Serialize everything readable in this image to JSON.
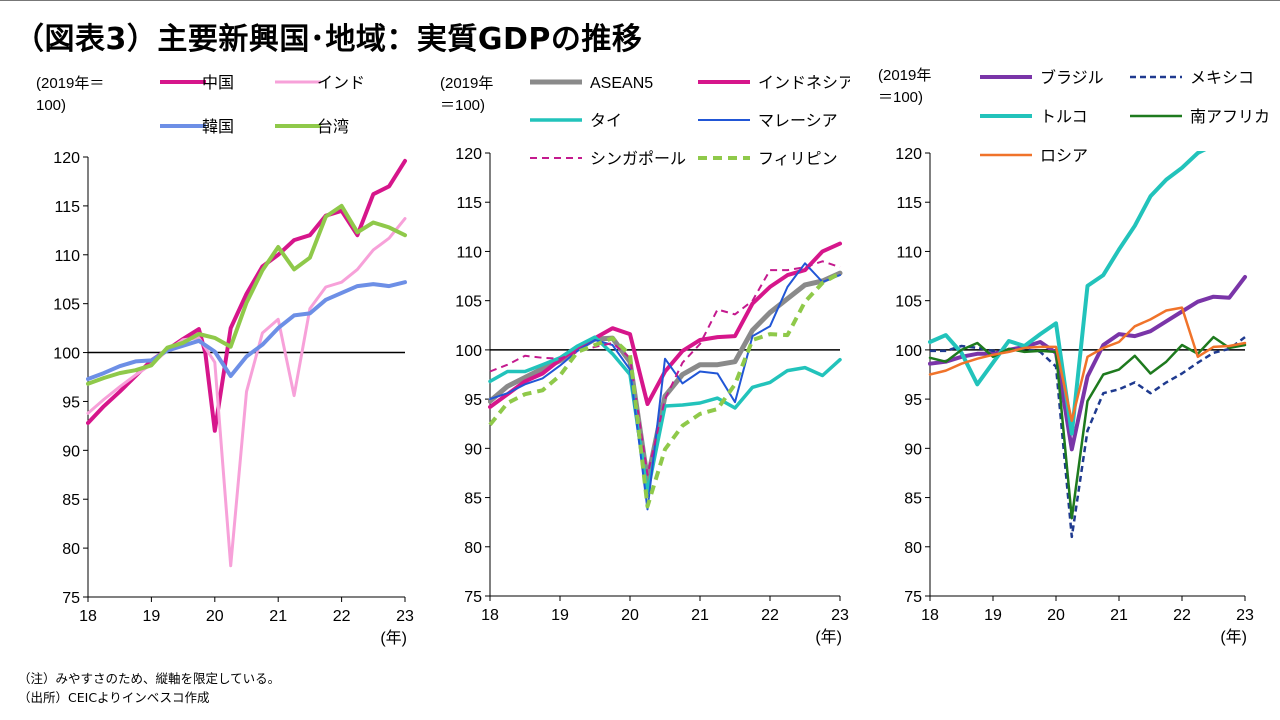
{
  "title": "（図表3）主要新興国･地域：実質GDPの推移",
  "notes": [
    "（注）みやすさのため、縦軸を限定している。",
    "（出所）CEICよりインベスコ作成"
  ],
  "chart_data": [
    {
      "type": "line",
      "unit_label": [
        "(2019年＝",
        "100)"
      ],
      "x_unit": "(年)",
      "xticks": [
        "18",
        "19",
        "20",
        "21",
        "22",
        "23"
      ],
      "x_range": [
        2018,
        2023
      ],
      "ylim": [
        75,
        120
      ],
      "yticks": [
        75,
        80,
        85,
        90,
        95,
        100,
        105,
        110,
        115,
        120
      ],
      "reference_line": 100,
      "series": [
        {
          "name": "中国",
          "color": "#d6168b",
          "width": 4,
          "dash": "",
          "x": [
            2018.0,
            2018.25,
            2018.5,
            2018.75,
            2019.0,
            2019.25,
            2019.5,
            2019.75,
            2019.85,
            2020.0,
            2020.25,
            2020.5,
            2020.75,
            2021.0,
            2021.25,
            2021.5,
            2021.75,
            2022.0,
            2022.25,
            2022.5,
            2022.75,
            2023.0
          ],
          "values": [
            92.8,
            94.5,
            96.0,
            97.6,
            99.2,
            100.3,
            101.4,
            102.4,
            100.0,
            92.0,
            102.5,
            106.0,
            108.8,
            110.0,
            111.5,
            112.0,
            114.0,
            114.5,
            112.0,
            116.2,
            117.0,
            119.6
          ]
        },
        {
          "name": "インド",
          "color": "#f7a1d9",
          "width": 3,
          "dash": "",
          "x": [
            2018.0,
            2018.25,
            2018.5,
            2018.75,
            2019.0,
            2019.25,
            2019.5,
            2019.75,
            2020.0,
            2020.25,
            2020.5,
            2020.75,
            2021.0,
            2021.25,
            2021.5,
            2021.75,
            2022.0,
            2022.25,
            2022.5,
            2022.75,
            2023.0
          ],
          "values": [
            93.8,
            95.2,
            96.5,
            97.7,
            98.8,
            100.2,
            101.3,
            101.5,
            99.0,
            78.2,
            96.0,
            102.0,
            103.4,
            95.6,
            104.5,
            106.7,
            107.2,
            108.5,
            110.5,
            111.7,
            113.7
          ]
        },
        {
          "name": "韓国",
          "color": "#6d8fe6",
          "width": 4,
          "dash": "",
          "x": [
            2018.0,
            2018.25,
            2018.5,
            2018.75,
            2019.0,
            2019.25,
            2019.5,
            2019.75,
            2020.0,
            2020.25,
            2020.5,
            2020.75,
            2021.0,
            2021.25,
            2021.5,
            2021.75,
            2022.0,
            2022.25,
            2022.5,
            2022.75,
            2023.0
          ],
          "values": [
            97.3,
            97.9,
            98.6,
            99.1,
            99.2,
            100.2,
            100.7,
            101.2,
            100.1,
            97.6,
            99.6,
            100.8,
            102.5,
            103.8,
            104.0,
            105.4,
            106.1,
            106.8,
            107.0,
            106.8,
            107.2
          ]
        },
        {
          "name": "台湾",
          "color": "#8fc94a",
          "width": 4,
          "dash": "",
          "x": [
            2018.0,
            2018.25,
            2018.5,
            2018.75,
            2019.0,
            2019.25,
            2019.5,
            2019.75,
            2020.0,
            2020.25,
            2020.5,
            2020.75,
            2021.0,
            2021.25,
            2021.5,
            2021.75,
            2022.0,
            2022.25,
            2022.5,
            2022.75,
            2023.0
          ],
          "values": [
            96.8,
            97.4,
            97.9,
            98.2,
            98.7,
            100.5,
            101.0,
            101.9,
            101.5,
            100.6,
            105.1,
            108.4,
            110.8,
            108.5,
            109.7,
            113.9,
            115.0,
            112.3,
            113.3,
            112.8,
            112.0
          ]
        }
      ]
    },
    {
      "type": "line",
      "unit_label": [
        "(2019年",
        "＝100)"
      ],
      "x_unit": "(年)",
      "xticks": [
        "18",
        "19",
        "20",
        "21",
        "22",
        "23"
      ],
      "x_range": [
        2018,
        2023
      ],
      "ylim": [
        75,
        120
      ],
      "yticks": [
        75,
        80,
        85,
        90,
        95,
        100,
        105,
        110,
        115,
        120
      ],
      "reference_line": 100,
      "series": [
        {
          "name": "ASEAN5",
          "color": "#8a8a8a",
          "width": 5,
          "dash": "",
          "x": [
            2018.0,
            2018.25,
            2018.5,
            2018.75,
            2019.0,
            2019.25,
            2019.5,
            2019.75,
            2020.0,
            2020.25,
            2020.5,
            2020.75,
            2021.0,
            2021.25,
            2021.5,
            2021.75,
            2022.0,
            2022.25,
            2022.5,
            2022.75,
            2023.0
          ],
          "values": [
            94.8,
            96.3,
            97.2,
            98.1,
            98.9,
            100.1,
            101.1,
            101.2,
            98.8,
            86.8,
            95.3,
            97.5,
            98.5,
            98.5,
            98.8,
            102.0,
            103.8,
            105.2,
            106.6,
            107.0,
            107.8
          ]
        },
        {
          "name": "インドネシア",
          "color": "#d6168b",
          "width": 4,
          "dash": "",
          "x": [
            2018.0,
            2018.25,
            2018.5,
            2018.75,
            2019.0,
            2019.25,
            2019.5,
            2019.75,
            2020.0,
            2020.25,
            2020.5,
            2020.75,
            2021.0,
            2021.25,
            2021.5,
            2021.75,
            2022.0,
            2022.25,
            2022.5,
            2022.75,
            2023.0
          ],
          "values": [
            94.2,
            95.5,
            96.8,
            97.6,
            99.0,
            100.2,
            101.2,
            102.2,
            101.6,
            94.5,
            97.8,
            99.9,
            101.0,
            101.3,
            101.4,
            104.7,
            106.4,
            107.6,
            108.1,
            110.0,
            110.8
          ]
        },
        {
          "name": "タイ",
          "color": "#22c3bb",
          "width": 3.5,
          "dash": "",
          "x": [
            2018.0,
            2018.25,
            2018.5,
            2018.75,
            2019.0,
            2019.25,
            2019.5,
            2019.75,
            2020.0,
            2020.25,
            2020.5,
            2020.75,
            2021.0,
            2021.25,
            2021.5,
            2021.75,
            2022.0,
            2022.25,
            2022.5,
            2022.75,
            2023.0
          ],
          "values": [
            96.8,
            97.8,
            97.8,
            98.5,
            99.2,
            100.4,
            101.3,
            99.6,
            97.5,
            85.5,
            94.3,
            94.4,
            94.6,
            95.1,
            94.1,
            96.2,
            96.7,
            97.9,
            98.2,
            97.4,
            99.0
          ]
        },
        {
          "name": "マレーシア",
          "color": "#2156d6",
          "width": 2,
          "dash": "",
          "x": [
            2018.0,
            2018.25,
            2018.5,
            2018.75,
            2019.0,
            2019.25,
            2019.5,
            2019.75,
            2020.0,
            2020.25,
            2020.5,
            2020.75,
            2021.0,
            2021.25,
            2021.5,
            2021.75,
            2022.0,
            2022.25,
            2022.5,
            2022.75,
            2023.0
          ],
          "values": [
            95.0,
            95.6,
            96.5,
            97.1,
            98.4,
            99.9,
            101.0,
            100.5,
            98.0,
            83.8,
            99.1,
            96.6,
            97.8,
            97.6,
            94.7,
            101.4,
            102.4,
            106.4,
            108.8,
            106.9,
            107.6
          ]
        },
        {
          "name": "シンガポール",
          "color": "#c41a8e",
          "width": 2,
          "dash": "7,5",
          "x": [
            2018.0,
            2018.25,
            2018.5,
            2018.75,
            2019.0,
            2019.25,
            2019.5,
            2019.75,
            2020.0,
            2020.25,
            2020.5,
            2020.75,
            2021.0,
            2021.25,
            2021.5,
            2021.75,
            2022.0,
            2022.25,
            2022.5,
            2022.75,
            2023.0
          ],
          "values": [
            97.8,
            98.5,
            99.4,
            99.2,
            99.1,
            99.8,
            100.3,
            100.7,
            99.2,
            87.3,
            95.0,
            98.7,
            100.6,
            104.1,
            103.6,
            105.0,
            108.1,
            108.1,
            108.4,
            109.0,
            108.4
          ]
        },
        {
          "name": "フィリピン",
          "color": "#8fc94a",
          "width": 4,
          "dash": "9,6",
          "x": [
            2018.0,
            2018.25,
            2018.5,
            2018.75,
            2019.0,
            2019.25,
            2019.5,
            2019.75,
            2020.0,
            2020.25,
            2020.5,
            2020.75,
            2021.0,
            2021.25,
            2021.5,
            2021.75,
            2022.0,
            2022.25,
            2022.5,
            2022.75,
            2023.0
          ],
          "values": [
            92.4,
            94.6,
            95.5,
            95.9,
            97.4,
            99.8,
            100.5,
            101.2,
            99.5,
            84.1,
            89.9,
            92.3,
            93.5,
            94.0,
            96.5,
            101.0,
            101.6,
            101.5,
            104.9,
            106.8,
            107.8
          ]
        }
      ]
    },
    {
      "type": "line",
      "unit_label": [
        "(2019年",
        "＝100)"
      ],
      "x_unit": "(年)",
      "xticks": [
        "18",
        "19",
        "20",
        "21",
        "22",
        "23"
      ],
      "x_range": [
        2018,
        2023
      ],
      "ylim": [
        75,
        120
      ],
      "yticks": [
        75,
        80,
        85,
        90,
        95,
        100,
        105,
        110,
        115,
        120
      ],
      "reference_line": 100,
      "series": [
        {
          "name": "ブラジル",
          "color": "#7a35a8",
          "width": 4,
          "dash": "",
          "x": [
            2018.0,
            2018.25,
            2018.5,
            2018.75,
            2019.0,
            2019.25,
            2019.5,
            2019.75,
            2020.0,
            2020.25,
            2020.5,
            2020.75,
            2021.0,
            2021.25,
            2021.5,
            2021.75,
            2022.0,
            2022.25,
            2022.5,
            2022.75,
            2023.0
          ],
          "values": [
            98.6,
            98.8,
            99.3,
            99.6,
            99.6,
            100.0,
            100.3,
            100.8,
            99.7,
            89.9,
            97.3,
            100.5,
            101.6,
            101.4,
            101.9,
            102.9,
            103.9,
            104.9,
            105.4,
            105.3,
            107.4
          ]
        },
        {
          "name": "メキシコ",
          "color": "#1f3a8f",
          "width": 2.5,
          "dash": "6,4",
          "x": [
            2018.0,
            2018.25,
            2018.5,
            2018.75,
            2019.0,
            2019.25,
            2019.5,
            2019.75,
            2020.0,
            2020.25,
            2020.5,
            2020.75,
            2021.0,
            2021.25,
            2021.5,
            2021.75,
            2022.0,
            2022.25,
            2022.5,
            2022.75,
            2023.0
          ],
          "values": [
            99.9,
            99.9,
            100.4,
            100.2,
            99.9,
            100.0,
            100.1,
            99.8,
            98.3,
            81.0,
            91.8,
            95.6,
            96.0,
            96.7,
            95.6,
            96.7,
            97.6,
            98.7,
            99.7,
            100.1,
            101.3
          ]
        },
        {
          "name": "トルコ",
          "color": "#22c3bb",
          "width": 4,
          "dash": "",
          "x": [
            2018.0,
            2018.25,
            2018.5,
            2018.75,
            2019.0,
            2019.25,
            2019.5,
            2019.75,
            2020.0,
            2020.25,
            2020.5,
            2020.75,
            2021.0,
            2021.25,
            2021.5,
            2021.75,
            2022.0,
            2022.25,
            2022.5,
            2022.75
          ],
          "values": [
            100.8,
            101.5,
            99.7,
            96.5,
            98.7,
            100.9,
            100.4,
            101.6,
            102.7,
            91.5,
            106.5,
            107.6,
            110.2,
            112.6,
            115.6,
            117.3,
            118.5,
            120.0,
            120.8,
            121.5
          ]
        },
        {
          "name": "南アフリカ",
          "color": "#1e7a1e",
          "width": 2.5,
          "dash": "",
          "x": [
            2018.0,
            2018.25,
            2018.5,
            2018.75,
            2019.0,
            2019.25,
            2019.5,
            2019.75,
            2020.0,
            2020.25,
            2020.5,
            2020.75,
            2021.0,
            2021.25,
            2021.5,
            2021.75,
            2022.0,
            2022.25,
            2022.5,
            2022.75,
            2023.0
          ],
          "values": [
            99.2,
            98.8,
            100.0,
            100.7,
            99.3,
            100.1,
            99.8,
            99.9,
            99.8,
            82.9,
            94.8,
            97.5,
            98.0,
            99.4,
            97.6,
            98.8,
            100.5,
            99.6,
            101.3,
            100.2,
            100.5
          ]
        },
        {
          "name": "ロシア",
          "color": "#f0732a",
          "width": 2.5,
          "dash": "",
          "x": [
            2018.0,
            2018.25,
            2018.5,
            2018.75,
            2019.0,
            2019.25,
            2019.5,
            2019.75,
            2020.0,
            2020.25,
            2020.5,
            2020.75,
            2021.0,
            2021.25,
            2021.5,
            2021.75,
            2022.0,
            2022.25,
            2022.5,
            2022.75,
            2023.0
          ],
          "values": [
            97.5,
            97.9,
            98.6,
            99.1,
            99.5,
            99.8,
            100.2,
            100.3,
            100.3,
            92.8,
            99.3,
            100.2,
            100.8,
            102.4,
            103.1,
            104.0,
            104.3,
            99.3,
            100.3,
            100.4,
            100.7
          ]
        }
      ]
    }
  ]
}
